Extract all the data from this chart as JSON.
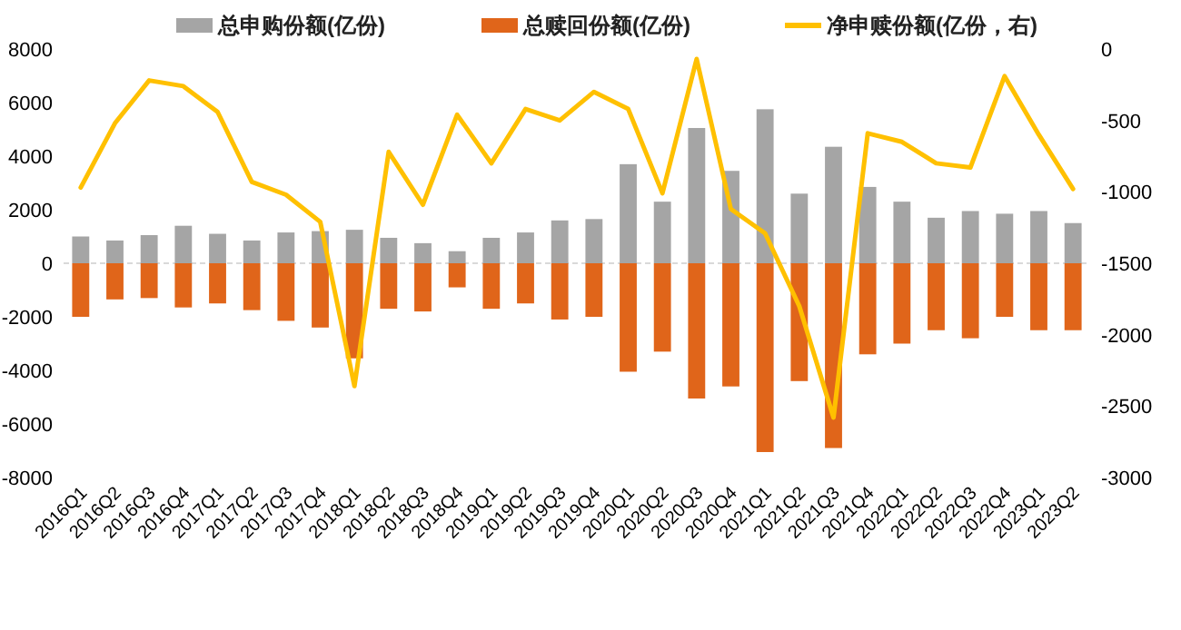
{
  "chart_data": {
    "type": "bar",
    "categories": [
      "2016Q1",
      "2016Q2",
      "2016Q3",
      "2016Q4",
      "2017Q1",
      "2017Q2",
      "2017Q3",
      "2017Q4",
      "2018Q1",
      "2018Q2",
      "2018Q3",
      "2018Q4",
      "2019Q1",
      "2019Q2",
      "2019Q3",
      "2019Q4",
      "2020Q1",
      "2020Q2",
      "2020Q3",
      "2020Q4",
      "2021Q1",
      "2021Q2",
      "2021Q3",
      "2021Q4",
      "2022Q1",
      "2022Q2",
      "2022Q3",
      "2022Q4",
      "2023Q1",
      "2023Q2"
    ],
    "series": [
      {
        "name": "总申购份额(亿份)",
        "color": "#a5a5a5",
        "values": [
          1000,
          850,
          1050,
          1400,
          1100,
          850,
          1150,
          1200,
          1250,
          950,
          750,
          450,
          950,
          1150,
          1600,
          1650,
          3700,
          2300,
          5050,
          3450,
          5750,
          2600,
          4350,
          2850,
          2300,
          1700,
          1950,
          1850,
          1950,
          1500
        ]
      },
      {
        "name": "总赎回份额(亿份)",
        "color": "#e0651a",
        "values": [
          -2000,
          -1350,
          -1300,
          -1650,
          -1500,
          -1750,
          -2150,
          -2400,
          -3550,
          -1700,
          -1800,
          -900,
          -1700,
          -1500,
          -2100,
          -2000,
          -4050,
          -3300,
          -5050,
          -4600,
          -7050,
          -4400,
          -6900,
          -3400,
          -3000,
          -2500,
          -2800,
          -2000,
          -2500,
          -2500
        ]
      },
      {
        "name": "净申赎份额(亿份，右)",
        "color": "#ffc000",
        "type": "line",
        "axis": "y2",
        "values": [
          -970,
          -520,
          -220,
          -260,
          -440,
          -930,
          -1020,
          -1210,
          -2360,
          -720,
          -1090,
          -460,
          -800,
          -420,
          -500,
          -300,
          -420,
          -1010,
          -70,
          -1120,
          -1290,
          -1800,
          -2580,
          -590,
          -650,
          -800,
          -830,
          -190,
          -600,
          -980
        ]
      }
    ],
    "ylim": [
      -8000,
      8000
    ],
    "yticks": [
      -8000,
      -6000,
      -4000,
      -2000,
      0,
      2000,
      4000,
      6000,
      8000
    ],
    "y2lim": [
      -3000,
      0
    ],
    "y2ticks": [
      -3000,
      -2500,
      -2000,
      -1500,
      -1000,
      -500,
      0
    ],
    "legend": "top",
    "stacked": true
  }
}
